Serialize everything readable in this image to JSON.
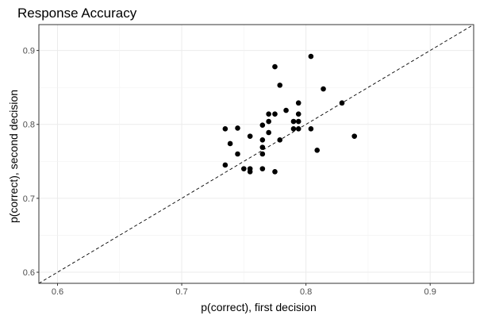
{
  "chart_data": {
    "type": "scatter",
    "title": "Response Accuracy",
    "xlabel": "p(correct), first decision",
    "ylabel": "p(correct), second decision",
    "xlim": [
      0.585,
      0.935
    ],
    "ylim": [
      0.585,
      0.935
    ],
    "xticks": [
      0.6,
      0.7,
      0.8,
      0.9
    ],
    "yticks": [
      0.6,
      0.7,
      0.8,
      0.9
    ],
    "xtick_labels": [
      "0.6",
      "0.7",
      "0.8",
      "0.9"
    ],
    "ytick_labels": [
      "0.6",
      "0.7",
      "0.8",
      "0.9"
    ],
    "grid": true,
    "reference_line": "y = x (dashed)",
    "point_color": "#000000",
    "points": [
      {
        "x": 0.735,
        "y": 0.794
      },
      {
        "x": 0.735,
        "y": 0.745
      },
      {
        "x": 0.739,
        "y": 0.774
      },
      {
        "x": 0.745,
        "y": 0.795
      },
      {
        "x": 0.745,
        "y": 0.76
      },
      {
        "x": 0.75,
        "y": 0.74
      },
      {
        "x": 0.755,
        "y": 0.736
      },
      {
        "x": 0.755,
        "y": 0.74
      },
      {
        "x": 0.755,
        "y": 0.784
      },
      {
        "x": 0.765,
        "y": 0.799
      },
      {
        "x": 0.765,
        "y": 0.779
      },
      {
        "x": 0.765,
        "y": 0.769
      },
      {
        "x": 0.765,
        "y": 0.76
      },
      {
        "x": 0.765,
        "y": 0.74
      },
      {
        "x": 0.77,
        "y": 0.814
      },
      {
        "x": 0.77,
        "y": 0.804
      },
      {
        "x": 0.77,
        "y": 0.789
      },
      {
        "x": 0.775,
        "y": 0.878
      },
      {
        "x": 0.775,
        "y": 0.814
      },
      {
        "x": 0.775,
        "y": 0.736
      },
      {
        "x": 0.779,
        "y": 0.853
      },
      {
        "x": 0.779,
        "y": 0.779
      },
      {
        "x": 0.784,
        "y": 0.819
      },
      {
        "x": 0.79,
        "y": 0.804
      },
      {
        "x": 0.79,
        "y": 0.794
      },
      {
        "x": 0.794,
        "y": 0.829
      },
      {
        "x": 0.794,
        "y": 0.814
      },
      {
        "x": 0.794,
        "y": 0.804
      },
      {
        "x": 0.794,
        "y": 0.794
      },
      {
        "x": 0.804,
        "y": 0.892
      },
      {
        "x": 0.804,
        "y": 0.794
      },
      {
        "x": 0.809,
        "y": 0.765
      },
      {
        "x": 0.814,
        "y": 0.848
      },
      {
        "x": 0.829,
        "y": 0.829
      },
      {
        "x": 0.839,
        "y": 0.784
      }
    ]
  }
}
